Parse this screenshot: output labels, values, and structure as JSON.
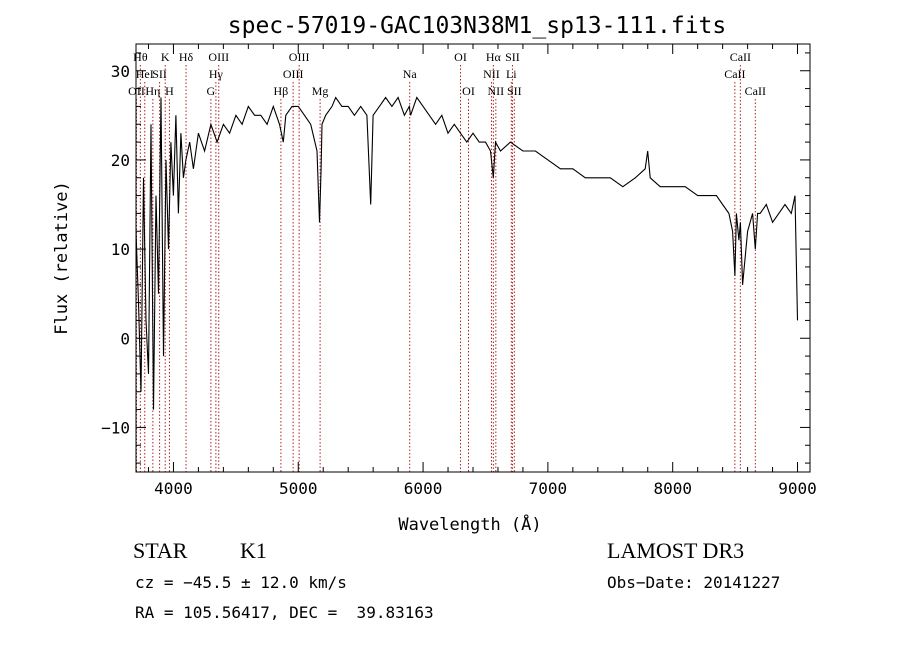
{
  "chart_data": {
    "type": "line",
    "title": "spec-57019-GAC103N38M1_sp13-111.fits",
    "xlabel": "Wavelength (Å)",
    "ylabel": "Flux (relative)",
    "xlim": [
      3700,
      9100
    ],
    "ylim": [
      -15,
      33
    ],
    "x_ticks": [
      4000,
      5000,
      6000,
      7000,
      8000,
      9000
    ],
    "x_tick_labels": [
      "4000",
      "5000",
      "6000",
      "7000",
      "8000",
      "9000"
    ],
    "y_ticks": [
      -10,
      0,
      10,
      20,
      30
    ],
    "y_tick_labels": [
      "−10",
      "0",
      "10",
      "20",
      "30"
    ],
    "series": [
      {
        "name": "flux",
        "x": [
          3700,
          3720,
          3740,
          3760,
          3780,
          3800,
          3820,
          3840,
          3860,
          3880,
          3900,
          3920,
          3940,
          3960,
          3980,
          4000,
          4020,
          4040,
          4060,
          4080,
          4100,
          4130,
          4160,
          4200,
          4250,
          4300,
          4350,
          4400,
          4450,
          4500,
          4550,
          4600,
          4650,
          4700,
          4750,
          4800,
          4850,
          4880,
          4900,
          4950,
          5000,
          5050,
          5100,
          5150,
          5170,
          5183,
          5190,
          5220,
          5270,
          5300,
          5350,
          5400,
          5450,
          5500,
          5550,
          5580,
          5600,
          5650,
          5700,
          5750,
          5800,
          5850,
          5890,
          5900,
          5950,
          6000,
          6050,
          6100,
          6150,
          6200,
          6250,
          6300,
          6350,
          6400,
          6450,
          6500,
          6540,
          6563,
          6580,
          6620,
          6700,
          6800,
          6900,
          7000,
          7100,
          7200,
          7300,
          7400,
          7500,
          7600,
          7700,
          7780,
          7800,
          7820,
          7900,
          8000,
          8100,
          8200,
          8300,
          8350,
          8400,
          8450,
          8480,
          8498,
          8510,
          8530,
          8542,
          8560,
          8600,
          8640,
          8662,
          8680,
          8700,
          8750,
          8800,
          8850,
          8900,
          8950,
          8980,
          9000
        ],
        "values": [
          12,
          4,
          -6,
          18,
          2,
          -4,
          24,
          -8,
          16,
          5,
          27,
          -2,
          20,
          10,
          22,
          16,
          25,
          14,
          23,
          18,
          20,
          22,
          19,
          23,
          21,
          24,
          22,
          24,
          23,
          25,
          24,
          26,
          25,
          25,
          24,
          26,
          24,
          22,
          25,
          26,
          26,
          25,
          24,
          21,
          13,
          19,
          24,
          25,
          26,
          27,
          26,
          26,
          25,
          26,
          25,
          15,
          25,
          26,
          27,
          26,
          27,
          25,
          26,
          25,
          27,
          26,
          25,
          24,
          25,
          23,
          24,
          23,
          22,
          23,
          22,
          22,
          21,
          18,
          22,
          21,
          22,
          21,
          21,
          20,
          19,
          19,
          18,
          18,
          18,
          17,
          18,
          19,
          21,
          18,
          17,
          17,
          17,
          16,
          16,
          16,
          15,
          14,
          12,
          7,
          14,
          11,
          13,
          6,
          12,
          14,
          10,
          14,
          14,
          15,
          13,
          14,
          15,
          14,
          16,
          2
        ]
      }
    ],
    "lines": [
      {
        "x": 3704,
        "label": "OII",
        "row": 3
      },
      {
        "x": 3735,
        "label": "Hθ",
        "row": 1
      },
      {
        "x": 3770,
        "label": "HeI",
        "row": 2
      },
      {
        "x": 3835,
        "label": "Hη",
        "row": 3
      },
      {
        "x": 3889,
        "label": "SII",
        "row": 2
      },
      {
        "x": 3934,
        "label": "K",
        "row": 1
      },
      {
        "x": 3968,
        "label": "H",
        "row": 3
      },
      {
        "x": 4101,
        "label": "Hδ",
        "row": 1
      },
      {
        "x": 4300,
        "label": "G",
        "row": 3
      },
      {
        "x": 4340,
        "label": "Hγ",
        "row": 2
      },
      {
        "x": 4363,
        "label": "OIII",
        "row": 1
      },
      {
        "x": 4861,
        "label": "Hβ",
        "row": 3
      },
      {
        "x": 4959,
        "label": "OIII",
        "row": 2
      },
      {
        "x": 5007,
        "label": "OIII",
        "row": 1
      },
      {
        "x": 5175,
        "label": "Mg",
        "row": 3
      },
      {
        "x": 5893,
        "label": "Na",
        "row": 2
      },
      {
        "x": 6300,
        "label": "OI",
        "row": 1
      },
      {
        "x": 6364,
        "label": "OI",
        "row": 3
      },
      {
        "x": 6548,
        "label": "NII",
        "row": 2
      },
      {
        "x": 6563,
        "label": "Hα",
        "row": 1
      },
      {
        "x": 6583,
        "label": "NII",
        "row": 3
      },
      {
        "x": 6707,
        "label": "Li",
        "row": 2
      },
      {
        "x": 6716,
        "label": "SII",
        "row": 1
      },
      {
        "x": 6731,
        "label": "SII",
        "row": 3
      },
      {
        "x": 8498,
        "label": "CaII",
        "row": 2
      },
      {
        "x": 8542,
        "label": "CaII",
        "row": 1
      },
      {
        "x": 8662,
        "label": "CaII",
        "row": 3
      }
    ]
  },
  "info": {
    "object_class": "STAR",
    "subclass": "K1",
    "survey": "LAMOST DR3",
    "cz": "cz = −45.5 ± 12.0 km/s",
    "obs_date": "Obs−Date: 20141227",
    "ra_dec": "RA = 105.56417, DEC =  39.83163"
  },
  "colors": {
    "spectrum": "#000000",
    "line_markers": "#b22222",
    "axes": "#000000"
  }
}
